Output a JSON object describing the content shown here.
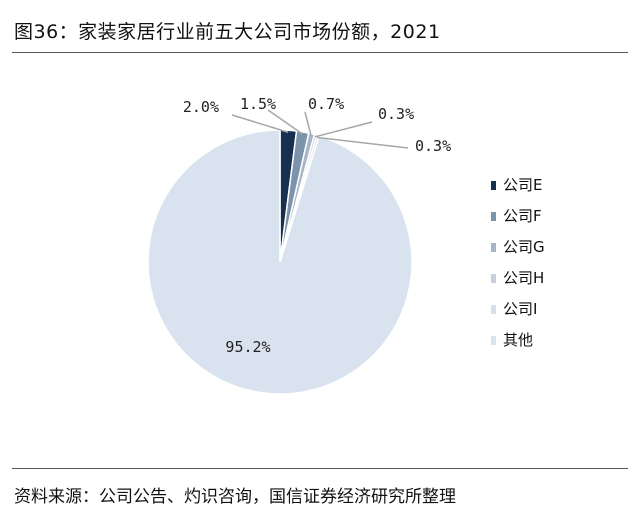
{
  "header": {
    "title": "图36：家装家居行业前五大公司市场份额，2021"
  },
  "footer": {
    "source": "资料来源：公司公告、灼识咨询，国信证券经济研究所整理"
  },
  "chart_data": {
    "type": "pie",
    "title": "图36：家装家居行业前五大公司市场份额，2021",
    "legend_position": "right",
    "slices": [
      {
        "name": "公司E",
        "value": 2.0,
        "label": "2.0%",
        "color": "#17304f"
      },
      {
        "name": "公司F",
        "value": 1.5,
        "label": "1.5%",
        "color": "#7b94ab"
      },
      {
        "name": "公司G",
        "value": 0.7,
        "label": "0.7%",
        "color": "#a7b5c4"
      },
      {
        "name": "公司H",
        "value": 0.3,
        "label": "0.3%",
        "color": "#c5d1dd"
      },
      {
        "name": "公司I",
        "value": 0.3,
        "label": "0.3%",
        "color": "#d6e0ea"
      },
      {
        "name": "其他",
        "value": 95.2,
        "label": "95.2%",
        "color": "#d9e3f0"
      }
    ]
  }
}
